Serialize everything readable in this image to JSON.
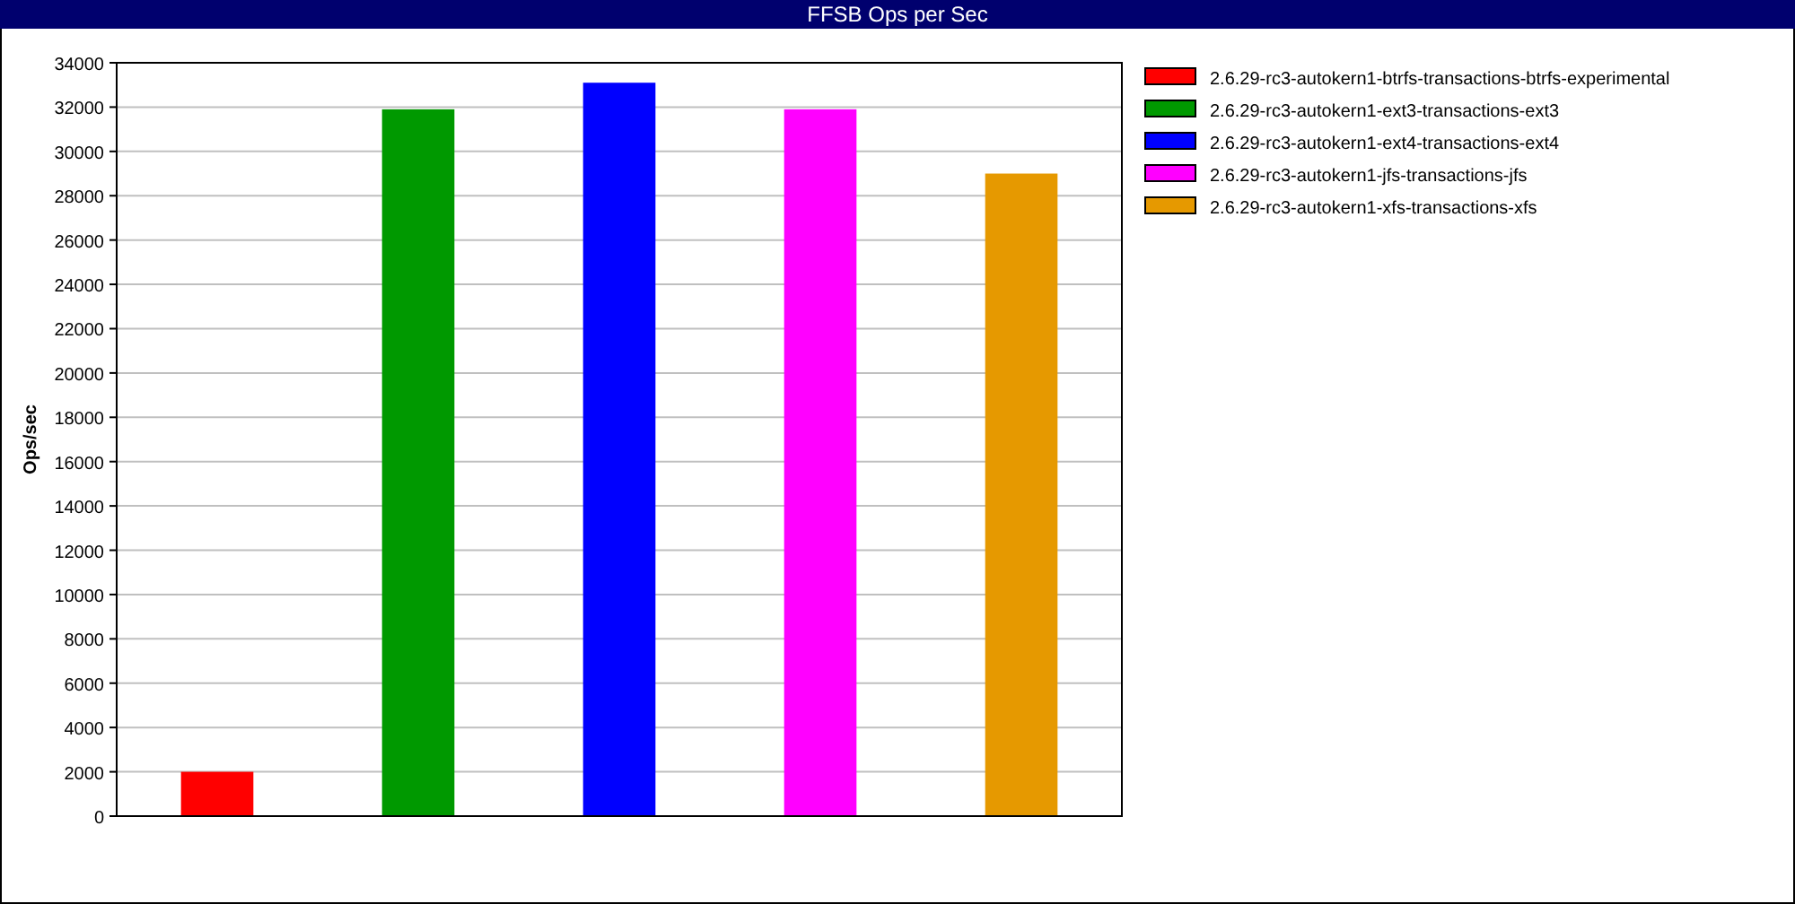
{
  "chart_data": {
    "type": "bar",
    "title": "FFSB Ops per Sec",
    "ylabel": "Ops/sec",
    "categories": [
      null,
      null,
      null,
      null,
      null
    ],
    "series": [
      {
        "name": "2.6.29-rc3-autokern1-btrfs-transactions-btrfs-experimental",
        "color": "#ff0000",
        "values": [
          2000,
          null,
          null,
          null,
          null
        ]
      },
      {
        "name": "2.6.29-rc3-autokern1-ext3-transactions-ext3",
        "color": "#009900",
        "values": [
          null,
          31900,
          null,
          null,
          null
        ]
      },
      {
        "name": "2.6.29-rc3-autokern1-ext4-transactions-ext4",
        "color": "#0000ff",
        "values": [
          null,
          null,
          33100,
          null,
          null
        ]
      },
      {
        "name": "2.6.29-rc3-autokern1-jfs-transactions-jfs",
        "color": "#ff00ff",
        "values": [
          null,
          null,
          null,
          31900,
          null
        ]
      },
      {
        "name": "2.6.29-rc3-autokern1-xfs-transactions-xfs",
        "color": "#e69900",
        "values": [
          null,
          null,
          null,
          null,
          29000
        ]
      }
    ],
    "ylim": [
      0,
      34000
    ],
    "yticks": [
      0,
      2000,
      4000,
      6000,
      8000,
      10000,
      12000,
      14000,
      16000,
      18000,
      20000,
      22000,
      24000,
      26000,
      28000,
      30000,
      32000,
      34000
    ],
    "grid": "y",
    "legend": "top right"
  }
}
